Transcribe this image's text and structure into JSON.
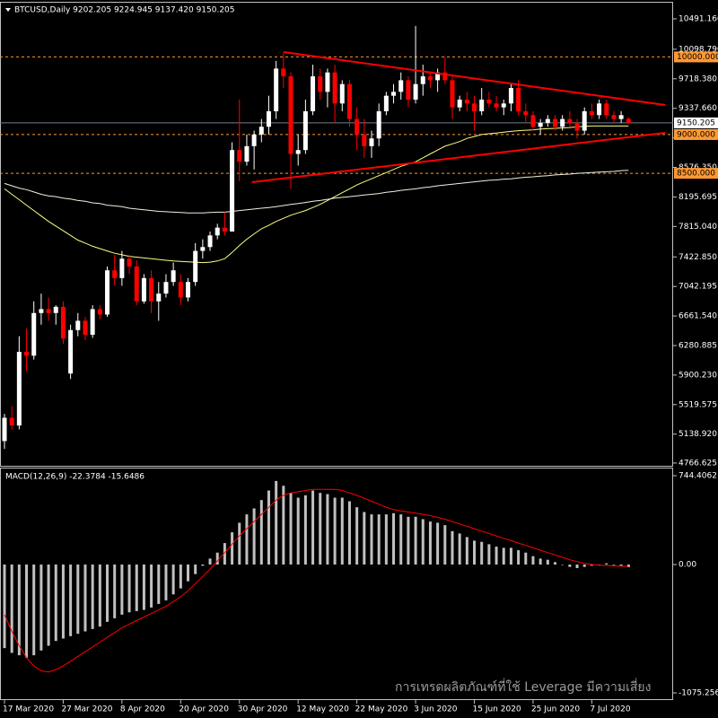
{
  "chart_data": [
    {
      "type": "candlestick",
      "title": "BTCUSD,Daily  9202.205 9224.945 9137.420 9150.205",
      "up_color": "#ffffff",
      "down_color": "#ff0000",
      "open": [
        5050,
        5350,
        5250,
        6200,
        6150,
        6700,
        6750,
        6700,
        6780,
        5920,
        6480,
        6600,
        6420,
        6750,
        6680,
        7250,
        7150,
        7400,
        7300,
        6850,
        7150,
        6850,
        6950,
        7100,
        7100,
        6900,
        7100,
        7500,
        7550,
        7700,
        7800,
        7750,
        8800,
        8650,
        8850,
        9000,
        9100,
        9300,
        9850,
        9750,
        8750,
        8800,
        9300,
        9750,
        9550,
        9800,
        9400,
        9650,
        9200,
        9000,
        8850,
        8950,
        9300,
        9500,
        9550,
        9700,
        9450,
        9650,
        9750,
        9700,
        9800,
        9700,
        9350,
        9450,
        9400,
        9300,
        9450,
        9400,
        9350,
        9400,
        9600,
        9300,
        9250,
        9100,
        9150,
        9200,
        9100,
        9200,
        9150,
        9050,
        9300,
        9250,
        9400,
        9250,
        9200,
        9202
      ],
      "high": [
        5400,
        5500,
        6400,
        6500,
        6850,
        6950,
        6900,
        6800,
        6850,
        6550,
        6700,
        6650,
        6800,
        6800,
        7300,
        7450,
        7500,
        7450,
        7380,
        7200,
        7250,
        7100,
        7200,
        7350,
        7200,
        7150,
        7600,
        7650,
        7750,
        7850,
        8000,
        8900,
        9450,
        9000,
        9050,
        9200,
        9500,
        9950,
        10050,
        9800,
        9000,
        9450,
        9900,
        9850,
        9850,
        9900,
        9700,
        9700,
        9350,
        9200,
        9050,
        9400,
        9550,
        9650,
        9800,
        9750,
        10400,
        9900,
        9800,
        9850,
        10000,
        9750,
        9500,
        9550,
        9500,
        9600,
        9550,
        9500,
        9450,
        9650,
        9700,
        9400,
        9300,
        9200,
        9250,
        9250,
        9250,
        9300,
        9200,
        9350,
        9400,
        9450,
        9450,
        9300,
        9300,
        9225
      ],
      "low": [
        4950,
        5200,
        5200,
        5950,
        6100,
        6550,
        6600,
        6550,
        6300,
        5850,
        6400,
        6350,
        6380,
        6620,
        6650,
        7050,
        7050,
        7200,
        6800,
        6820,
        6700,
        6600,
        6900,
        7050,
        6800,
        6850,
        7050,
        7400,
        7500,
        7650,
        7700,
        7750,
        8400,
        8600,
        8550,
        8900,
        9000,
        9200,
        9600,
        8300,
        8600,
        8750,
        9250,
        9450,
        9350,
        9150,
        9300,
        9100,
        8800,
        8700,
        8700,
        8850,
        9250,
        9400,
        9450,
        9350,
        9400,
        9500,
        9600,
        9550,
        9650,
        9200,
        9300,
        9300,
        9050,
        9250,
        9350,
        9300,
        9250,
        9300,
        9250,
        9150,
        9050,
        9000,
        9100,
        9050,
        9050,
        9100,
        8950,
        9000,
        9200,
        9200,
        9200,
        9150,
        9150,
        9137
      ],
      "close": [
        5350,
        5250,
        6200,
        6150,
        6700,
        6750,
        6700,
        6780,
        6370,
        6480,
        6600,
        6420,
        6750,
        6680,
        7250,
        7150,
        7400,
        7300,
        6850,
        7150,
        6850,
        6950,
        7100,
        7250,
        6900,
        7100,
        7500,
        7550,
        7700,
        7800,
        7750,
        8800,
        8650,
        8850,
        9000,
        9100,
        9300,
        9850,
        9750,
        8750,
        8800,
        9300,
        9750,
        9550,
        9800,
        9400,
        9650,
        9200,
        9000,
        8850,
        8950,
        9300,
        9500,
        9550,
        9700,
        9450,
        9650,
        9750,
        9700,
        9800,
        9700,
        9350,
        9450,
        9400,
        9300,
        9450,
        9400,
        9350,
        9400,
        9600,
        9300,
        9250,
        9100,
        9150,
        9200,
        9100,
        9200,
        9150,
        9050,
        9300,
        9250,
        9400,
        9250,
        9200,
        9250,
        9150
      ],
      "overlays": [
        {
          "color": "#ffff80",
          "values": [
            8300,
            8230,
            8160,
            8090,
            8020,
            7950,
            7880,
            7820,
            7760,
            7700,
            7640,
            7600,
            7560,
            7530,
            7500,
            7470,
            7450,
            7430,
            7420,
            7410,
            7400,
            7390,
            7380,
            7370,
            7365,
            7360,
            7355,
            7350,
            7355,
            7370,
            7400,
            7480,
            7570,
            7650,
            7720,
            7785,
            7830,
            7880,
            7920,
            7960,
            7990,
            8020,
            8060,
            8100,
            8150,
            8200,
            8250,
            8300,
            8350,
            8390,
            8430,
            8470,
            8510,
            8550,
            8590,
            8620,
            8650,
            8700,
            8750,
            8800,
            8850,
            8880,
            8910,
            8950,
            8975,
            9000,
            9010,
            9020,
            9030,
            9040,
            9050,
            9055,
            9060,
            9070,
            9075,
            9080,
            9085,
            9090,
            9100,
            9105,
            9110,
            9110,
            9110,
            9110,
            9110,
            9110
          ]
        },
        {
          "color": "#f0f0e0",
          "values": [
            8370,
            8340,
            8310,
            8290,
            8260,
            8230,
            8210,
            8200,
            8180,
            8170,
            8150,
            8140,
            8120,
            8110,
            8090,
            8080,
            8070,
            8050,
            8040,
            8030,
            8020,
            8010,
            8005,
            8000,
            7995,
            7990,
            7990,
            7990,
            7995,
            8000,
            8000,
            8010,
            8020,
            8030,
            8040,
            8050,
            8060,
            8070,
            8085,
            8100,
            8110,
            8125,
            8140,
            8150,
            8165,
            8180,
            8190,
            8200,
            8210,
            8220,
            8230,
            8240,
            8255,
            8265,
            8280,
            8290,
            8300,
            8315,
            8325,
            8340,
            8350,
            8360,
            8370,
            8380,
            8390,
            8400,
            8410,
            8415,
            8425,
            8430,
            8440,
            8450,
            8455,
            8465,
            8470,
            8480,
            8485,
            8490,
            8500,
            8505,
            8510,
            8515,
            8520,
            8525,
            8535,
            8540
          ]
        }
      ],
      "trendlines": [
        {
          "color": "#ff0000",
          "x": [
            38,
            90
          ],
          "y": [
            10063,
            9381
          ]
        },
        {
          "color": "#ff0000",
          "x": [
            33.7,
            90
          ],
          "y": [
            8386,
            9022
          ]
        }
      ],
      "levels": [
        {
          "value": 10000,
          "label": "10000.000",
          "color": "#ff9933"
        },
        {
          "value": 9000,
          "label": "9000.000",
          "color": "#ff9933"
        },
        {
          "value": 8500,
          "label": "8500.000",
          "color": "#ff9933"
        }
      ],
      "price_line": {
        "value": 9150.205,
        "label": "9150.205",
        "color": "#708090"
      },
      "ylim": [
        4731,
        10699
      ],
      "yticks": [
        {
          "value": 10491.16,
          "label": "10491.160"
        },
        {
          "value": 10098.79,
          "label": "10098.790"
        },
        {
          "value": 9718.38,
          "label": "9718.380"
        },
        {
          "value": 9337.66,
          "label": "9337.660"
        },
        {
          "value": 8957.005,
          "label": "8957.005"
        },
        {
          "value": 8576.35,
          "label": "8576.350"
        },
        {
          "value": 8195.695,
          "label": "8195.695"
        },
        {
          "value": 7815.04,
          "label": "7815.040"
        },
        {
          "value": 7422.85,
          "label": "7422.850"
        },
        {
          "value": 7042.195,
          "label": "7042.195"
        },
        {
          "value": 6661.54,
          "label": "6661.540"
        },
        {
          "value": 6280.885,
          "label": "6280.885"
        },
        {
          "value": 5900.23,
          "label": "5900.230"
        },
        {
          "value": 5519.575,
          "label": "5519.575"
        },
        {
          "value": 5138.92,
          "label": "5138.920"
        },
        4766.625
      ]
    },
    {
      "type": "macd",
      "title": "MACD(12,26,9) -22.3784 -15.6486",
      "categories": [
        "17 Mar 2020",
        null,
        null,
        null,
        null,
        null,
        null,
        null,
        "27 Mar 2020",
        null,
        null,
        null,
        null,
        null,
        null,
        null,
        "8 Apr 2020",
        null,
        null,
        null,
        null,
        null,
        null,
        null,
        "20 Apr 2020",
        null,
        null,
        null,
        null,
        null,
        null,
        null,
        "30 Apr 2020",
        null,
        null,
        null,
        null,
        null,
        null,
        null,
        "12 May 2020",
        null,
        null,
        null,
        null,
        null,
        null,
        null,
        "22 May 2020",
        null,
        null,
        null,
        null,
        null,
        null,
        null,
        "3 Jun 2020",
        null,
        null,
        null,
        null,
        null,
        null,
        null,
        "15 Jun 2020",
        null,
        null,
        null,
        null,
        null,
        null,
        null,
        "25 Jun 2020",
        null,
        null,
        null,
        null,
        null,
        null,
        null,
        "7 Jul 2020",
        null,
        null,
        null,
        null,
        null
      ],
      "histogram": {
        "color": "#c0c0c0",
        "values": [
          -700,
          -740,
          -760,
          -780,
          -760,
          -720,
          -680,
          -640,
          -620,
          -600,
          -580,
          -560,
          -540,
          -520,
          -480,
          -450,
          -420,
          -400,
          -390,
          -380,
          -360,
          -330,
          -300,
          -250,
          -200,
          -140,
          -80,
          -10,
          50,
          100,
          180,
          270,
          350,
          420,
          470,
          540,
          620,
          700,
          660,
          600,
          560,
          580,
          620,
          600,
          590,
          560,
          560,
          530,
          480,
          440,
          420,
          420,
          420,
          430,
          420,
          400,
          400,
          380,
          360,
          350,
          330,
          280,
          260,
          230,
          200,
          190,
          170,
          150,
          140,
          140,
          120,
          100,
          70,
          50,
          40,
          20,
          0,
          -20,
          -30,
          -20,
          -10,
          0,
          10,
          -5,
          -10,
          -22.3784
        ]
      },
      "signal": {
        "color": "#ff0000",
        "values": [
          -420,
          -560,
          -680,
          -780,
          -850,
          -890,
          -900,
          -880,
          -850,
          -810,
          -770,
          -730,
          -690,
          -650,
          -610,
          -570,
          -530,
          -500,
          -470,
          -440,
          -410,
          -380,
          -350,
          -310,
          -270,
          -220,
          -160,
          -100,
          -40,
          30,
          100,
          170,
          240,
          300,
          360,
          420,
          480,
          540,
          580,
          600,
          610,
          620,
          630,
          630,
          630,
          630,
          620,
          600,
          580,
          555,
          530,
          505,
          480,
          460,
          450,
          440,
          430,
          420,
          410,
          395,
          380,
          360,
          340,
          320,
          300,
          280,
          260,
          240,
          220,
          200,
          180,
          160,
          140,
          120,
          100,
          80,
          60,
          40,
          25,
          10,
          0,
          -5,
          -10,
          -12,
          -14,
          -15.6486
        ]
      },
      "ylim": [
        -1135,
        812
      ],
      "yticks": [
        744.4062,
        {
          "value": 0,
          "label": "0.00"
        },
        -1075.2566
      ]
    },
    {
      "type": "watermark",
      "text": "การเทรดผลิตภัณฑ์ที่ใช้ Leverage มีความเสี่ยง"
    }
  ]
}
